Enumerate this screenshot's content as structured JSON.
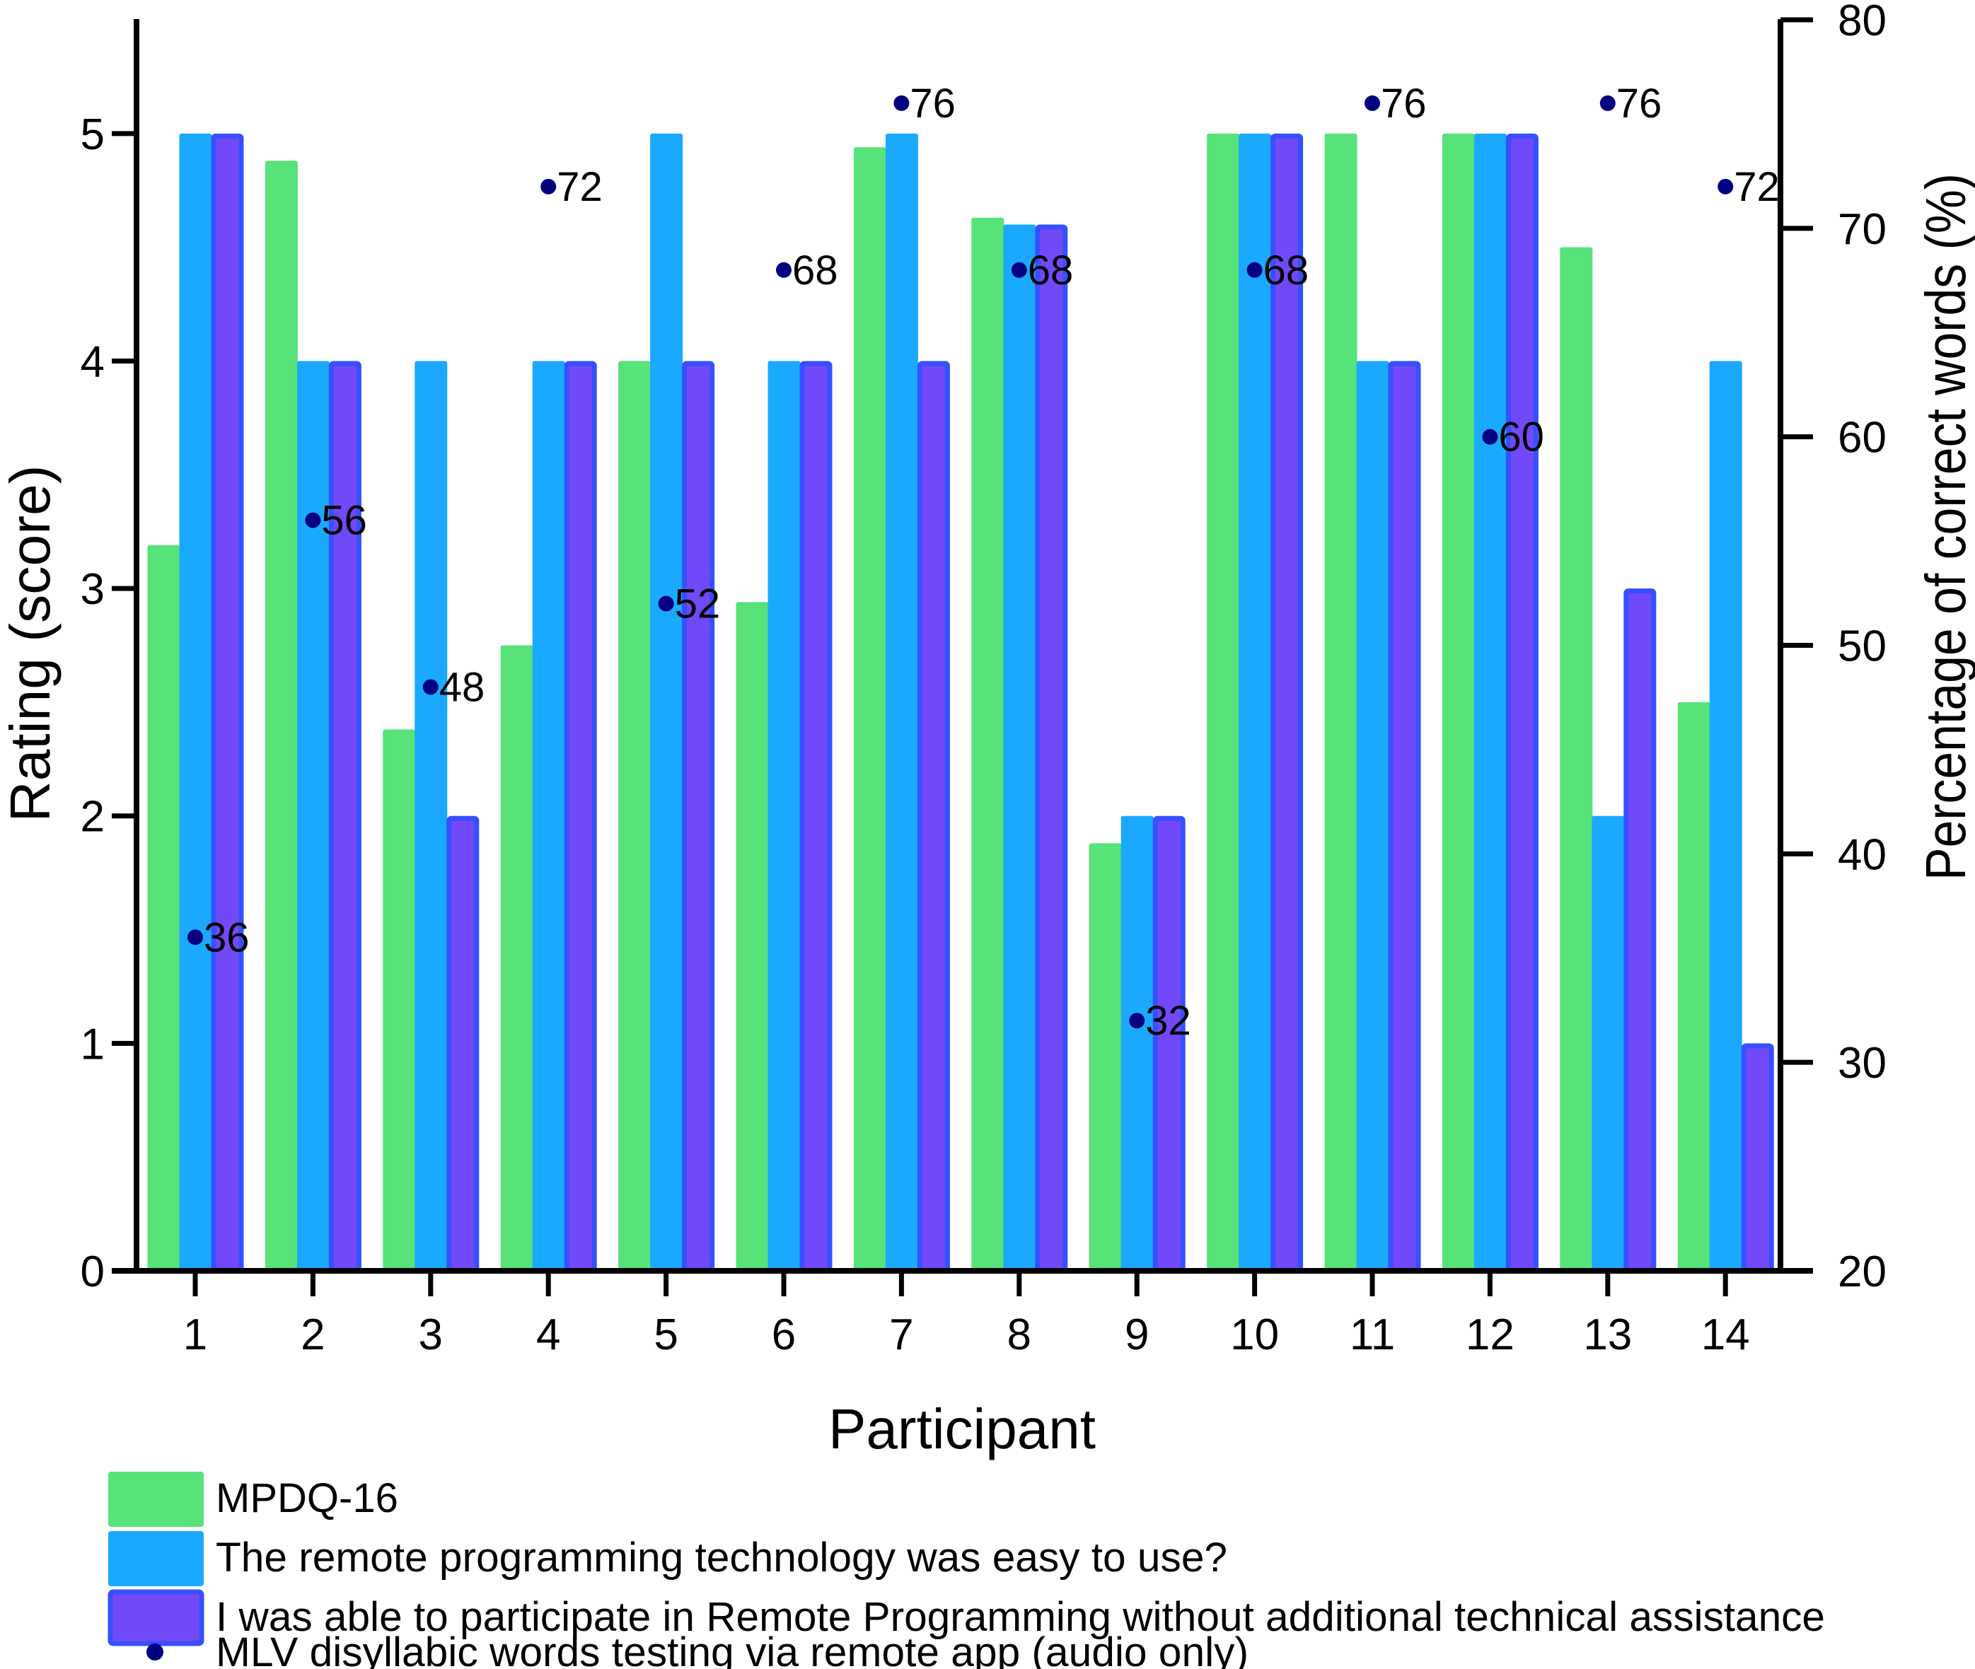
{
  "chart_data": {
    "type": "bar",
    "title": "",
    "xlabel": "Participant",
    "ylabel": "Rating (score)",
    "y2label": "Percentage of correct words (%)",
    "ylim": [
      0,
      5.5
    ],
    "y2lim": [
      20,
      80
    ],
    "yticks": [
      0,
      1,
      2,
      3,
      4,
      5
    ],
    "y2ticks": [
      20,
      30,
      40,
      50,
      60,
      70,
      80
    ],
    "grid": false,
    "legend_position": "bottom-left",
    "categories": [
      "1",
      "2",
      "3",
      "4",
      "5",
      "6",
      "7",
      "8",
      "9",
      "10",
      "11",
      "12",
      "13",
      "14"
    ],
    "series": [
      {
        "name": "MPDQ-16",
        "kind": "bar",
        "axis": "left",
        "color": "#57E27A",
        "values": [
          3.19,
          4.88,
          2.38,
          2.75,
          4.0,
          2.94,
          4.94,
          4.63,
          1.88,
          5.0,
          5.0,
          5.0,
          4.5,
          2.5
        ]
      },
      {
        "name": "The remote programming technology was easy to use?",
        "kind": "bar",
        "axis": "left",
        "color": "#1AA9FF",
        "values": [
          5,
          4,
          4,
          4,
          5,
          4,
          5,
          4.6,
          2,
          5,
          4,
          5,
          2,
          4
        ]
      },
      {
        "name": "I was able to participate in Remote Programming without additional technical assistance",
        "kind": "bar",
        "axis": "left",
        "color": "#7249F8",
        "border": "#3650FF",
        "values": [
          5,
          4,
          2,
          4,
          4,
          4,
          4,
          4.6,
          2,
          5,
          4,
          5,
          3,
          1
        ]
      },
      {
        "name": "MLV disyllabic words testing via remote app (audio only)",
        "kind": "scatter",
        "axis": "right",
        "color": "#000080",
        "values": [
          36,
          56,
          48,
          72,
          52,
          68,
          76,
          68,
          32,
          68,
          76,
          60,
          76,
          72
        ],
        "labels": [
          "36",
          "56",
          "48",
          "72",
          "52",
          "68",
          "76",
          "68",
          "32",
          "68",
          "76",
          "60",
          "76",
          "72"
        ]
      }
    ]
  }
}
